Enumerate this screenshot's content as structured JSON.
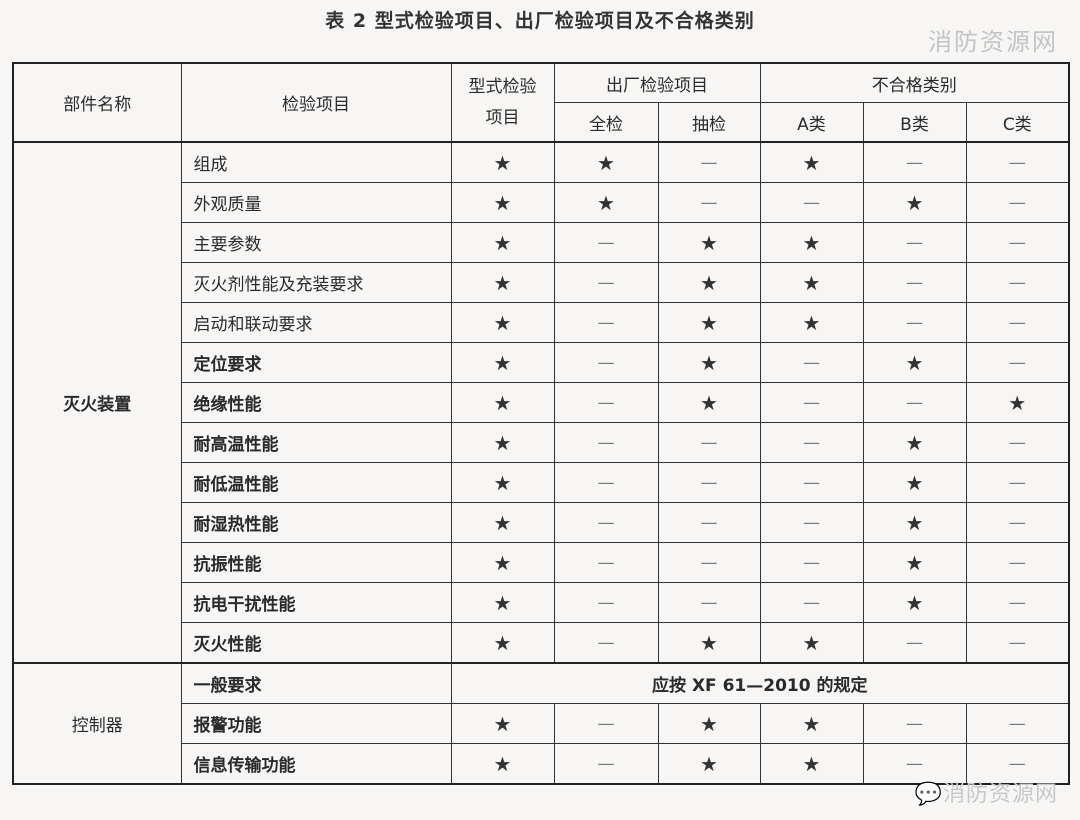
{
  "title": "表 2   型式检验项目、出厂检验项目及不合格类别",
  "watermark_top": "消防资源网",
  "watermark_bottom": "消防资源网",
  "header": {
    "part_name": "部件名称",
    "inspection_item": "检验项目",
    "type_test": "型式检验项目",
    "factory_test": "出厂检验项目",
    "full_check": "全检",
    "sample_check": "抽检",
    "nonconformity": "不合格类别",
    "class_a": "A类",
    "class_b": "B类",
    "class_c": "C类"
  },
  "symbols": {
    "yes": "★",
    "no": "—"
  },
  "groups": [
    {
      "part": "灭火装置",
      "rows": [
        {
          "item": "组成",
          "values": [
            "★",
            "★",
            "—",
            "★",
            "—",
            "—"
          ]
        },
        {
          "item": "外观质量",
          "values": [
            "★",
            "★",
            "—",
            "—",
            "★",
            "—"
          ]
        },
        {
          "item": "主要参数",
          "values": [
            "★",
            "—",
            "★",
            "★",
            "—",
            "—"
          ]
        },
        {
          "item": "灭火剂性能及充装要求",
          "values": [
            "★",
            "—",
            "★",
            "★",
            "—",
            "—"
          ]
        },
        {
          "item": "启动和联动要求",
          "values": [
            "★",
            "—",
            "★",
            "★",
            "—",
            "—"
          ]
        },
        {
          "item": "定位要求",
          "values": [
            "★",
            "—",
            "★",
            "—",
            "★",
            "—"
          ]
        },
        {
          "item": "绝缘性能",
          "values": [
            "★",
            "—",
            "★",
            "—",
            "—",
            "★"
          ]
        },
        {
          "item": "耐高温性能",
          "values": [
            "★",
            "—",
            "—",
            "—",
            "★",
            "—"
          ]
        },
        {
          "item": "耐低温性能",
          "values": [
            "★",
            "—",
            "—",
            "—",
            "★",
            "—"
          ]
        },
        {
          "item": "耐湿热性能",
          "values": [
            "★",
            "—",
            "—",
            "—",
            "★",
            "—"
          ]
        },
        {
          "item": "抗振性能",
          "values": [
            "★",
            "—",
            "—",
            "—",
            "★",
            "—"
          ]
        },
        {
          "item": "抗电干扰性能",
          "values": [
            "★",
            "—",
            "—",
            "—",
            "★",
            "—"
          ]
        },
        {
          "item": "灭火性能",
          "values": [
            "★",
            "—",
            "★",
            "★",
            "—",
            "—"
          ]
        }
      ]
    },
    {
      "part": "控制器",
      "rows": [
        {
          "item": "一般要求",
          "note": "应按 XF 61—2010 的规定"
        },
        {
          "item": "报警功能",
          "values": [
            "★",
            "—",
            "★",
            "★",
            "—",
            "—"
          ]
        },
        {
          "item": "信息传输功能",
          "values": [
            "★",
            "—",
            "★",
            "★",
            "—",
            "—"
          ]
        }
      ]
    }
  ]
}
